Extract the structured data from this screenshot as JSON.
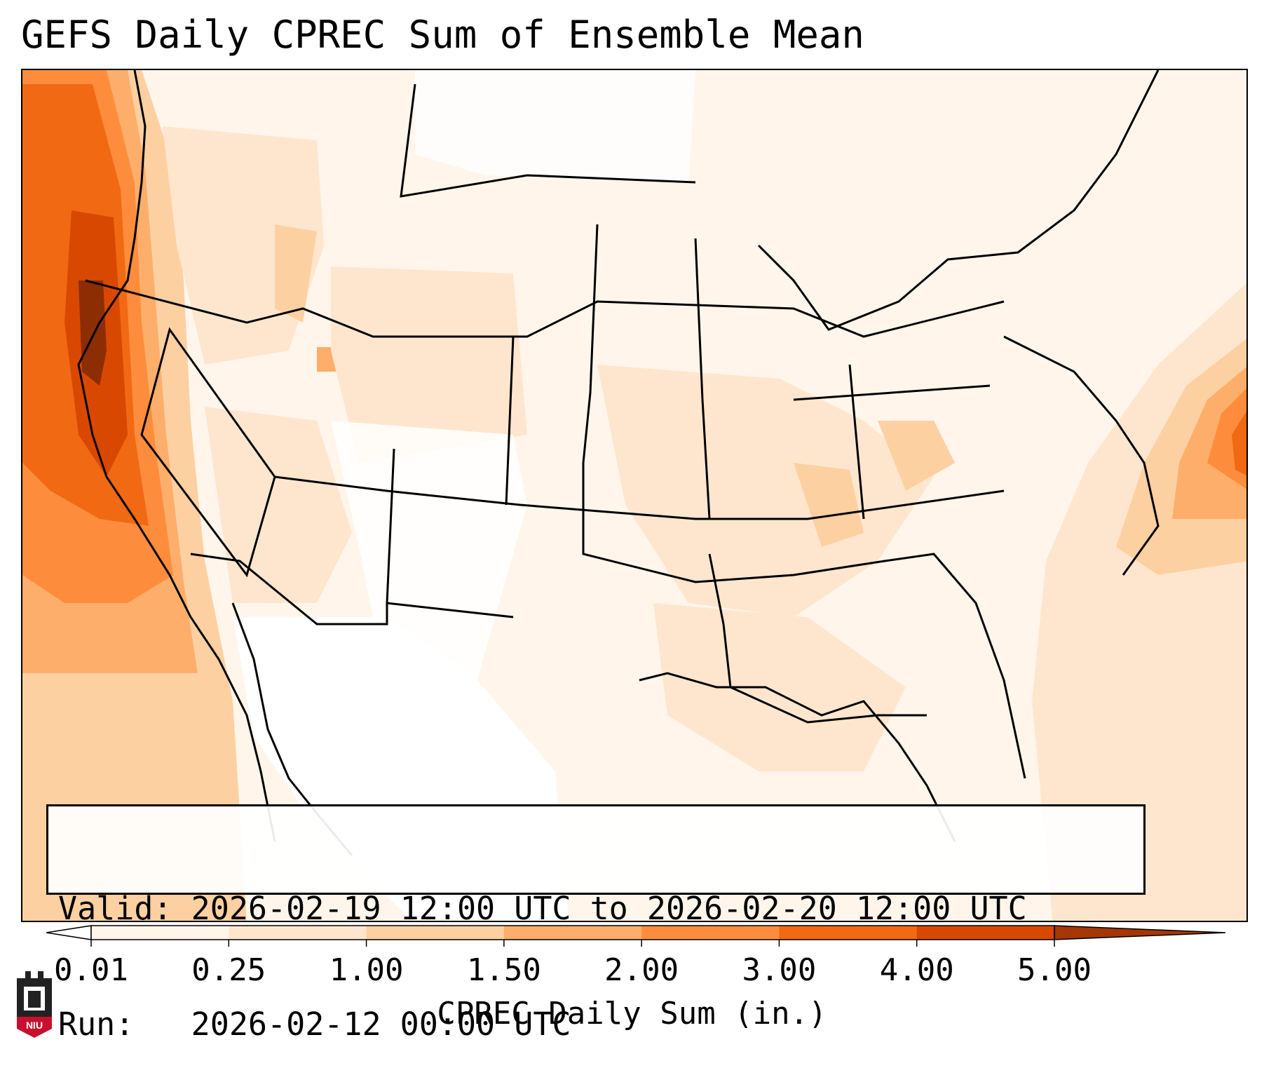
{
  "title": "GEFS Daily CPREC Sum of Ensemble Mean",
  "info": {
    "valid_label": "Valid:",
    "valid_value": "2026-02-19 12:00 UTC to 2026-02-20 12:00 UTC",
    "run_label": "Run:",
    "run_value": "2026-02-12 00:00 UTC"
  },
  "colorbar": {
    "label": "CPREC Daily Sum (in.)",
    "ticks": [
      "0.01",
      "0.25",
      "1.00",
      "1.50",
      "2.00",
      "3.00",
      "4.00",
      "5.00"
    ],
    "colors": [
      "#fff5eb",
      "#fee6ce",
      "#fdd0a2",
      "#fdae6b",
      "#fd8d3c",
      "#f16913",
      "#d94801",
      "#8c2d04"
    ],
    "extend_low_color": "#ffffff",
    "extend_high_color": "#a63603"
  },
  "logo": {
    "text": "NIU",
    "color": "#c8102e"
  },
  "colors": {
    "coast": "#000000",
    "background": "#ffffff"
  }
}
